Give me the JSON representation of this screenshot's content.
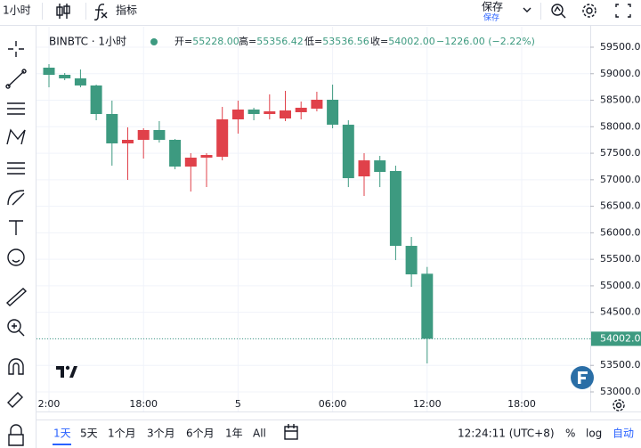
{
  "toolbar": {
    "interval": "1小时",
    "indicators": "指标",
    "save": "保存",
    "save_sub": "保存"
  },
  "header": {
    "symbol": "BINBTC · 1小时",
    "ohlc": [
      {
        "label": "开=",
        "value": "55228.00"
      },
      {
        "label": "高=",
        "value": "55356.42"
      },
      {
        "label": "低=",
        "value": "53536.56"
      },
      {
        "label": "收=",
        "value": "54002.00"
      },
      {
        "value": "−1226.00 (−2.22%)"
      }
    ]
  },
  "chart_data": {
    "type": "candlestick",
    "categories": [
      "2:00",
      null,
      null,
      null,
      null,
      null,
      "18:00",
      null,
      null,
      null,
      null,
      null,
      "5",
      null,
      null,
      null,
      null,
      null,
      "06:00",
      null,
      null,
      null,
      null,
      null,
      "12:00",
      null,
      null,
      null,
      null,
      null,
      "18:00"
    ],
    "open": [
      59114,
      58979,
      58912,
      58778,
      58240,
      57686,
      57753,
      57938,
      57753,
      57249,
      57417,
      57434,
      58139,
      58324,
      58240,
      58156,
      58274,
      58341,
      58509,
      58038,
      57064,
      57366,
      57165,
      55754,
      55228,
      null,
      null,
      null,
      null,
      null,
      null
    ],
    "high": [
      59181,
      59013,
      59080,
      58794,
      58492,
      57988,
      57971,
      58106,
      57770,
      57501,
      57501,
      58374,
      58492,
      58358,
      58610,
      58677,
      58475,
      58660,
      58794,
      58122,
      57501,
      57450,
      57266,
      55922,
      55356.42,
      null,
      null,
      null,
      null,
      null,
      null
    ],
    "low": [
      58744,
      58878,
      58744,
      58122,
      57266,
      56997,
      57400,
      57702,
      57198,
      56778,
      56862,
      57366,
      57870,
      58122,
      58139,
      58106,
      58139,
      58290,
      57971,
      56862,
      56694,
      56862,
      55485,
      54981,
      53536.56,
      null,
      null,
      null,
      null,
      null,
      null
    ],
    "close": [
      58979,
      58912,
      58778,
      58240,
      57686,
      57753,
      57938,
      57753,
      57249,
      57417,
      57467,
      58139,
      58324,
      58240,
      58290,
      58307,
      58358,
      58509,
      58038,
      57030,
      57366,
      57148,
      55754,
      55216,
      54002,
      null,
      null,
      null,
      null,
      null,
      null
    ],
    "up_color": "#e0414a",
    "down_color": "#3d9a80",
    "ylim": [
      52916,
      59886
    ],
    "yticks": [
      {
        "value": 53000,
        "label": "53000.00"
      },
      {
        "value": 53500,
        "label": "53500.00"
      },
      {
        "value": 54000,
        "label": "54000.00"
      },
      {
        "value": 54500,
        "label": "54500.00"
      },
      {
        "value": 55000,
        "label": "55000.00"
      },
      {
        "value": 55500,
        "label": "55500.00"
      },
      {
        "value": 56000,
        "label": "56000.00"
      },
      {
        "value": 56500,
        "label": "56500.00"
      },
      {
        "value": 57000,
        "label": "57000.00"
      },
      {
        "value": 57500,
        "label": "57500.00"
      },
      {
        "value": 58000,
        "label": "58000.00"
      },
      {
        "value": 58500,
        "label": "58500.00"
      },
      {
        "value": 59000,
        "label": "59000.00"
      },
      {
        "value": 59500,
        "label": "59500.00"
      }
    ],
    "last_price": {
      "value": 54002,
      "label": "54002.00"
    },
    "grid": true
  },
  "bottom": {
    "ranges": [
      "1天",
      "5天",
      "1个月",
      "3个月",
      "6个月",
      "1年",
      "All"
    ],
    "clock": "12:24:11 (UTC+8)",
    "percent": "%",
    "log": "log",
    "auto": "自动"
  }
}
